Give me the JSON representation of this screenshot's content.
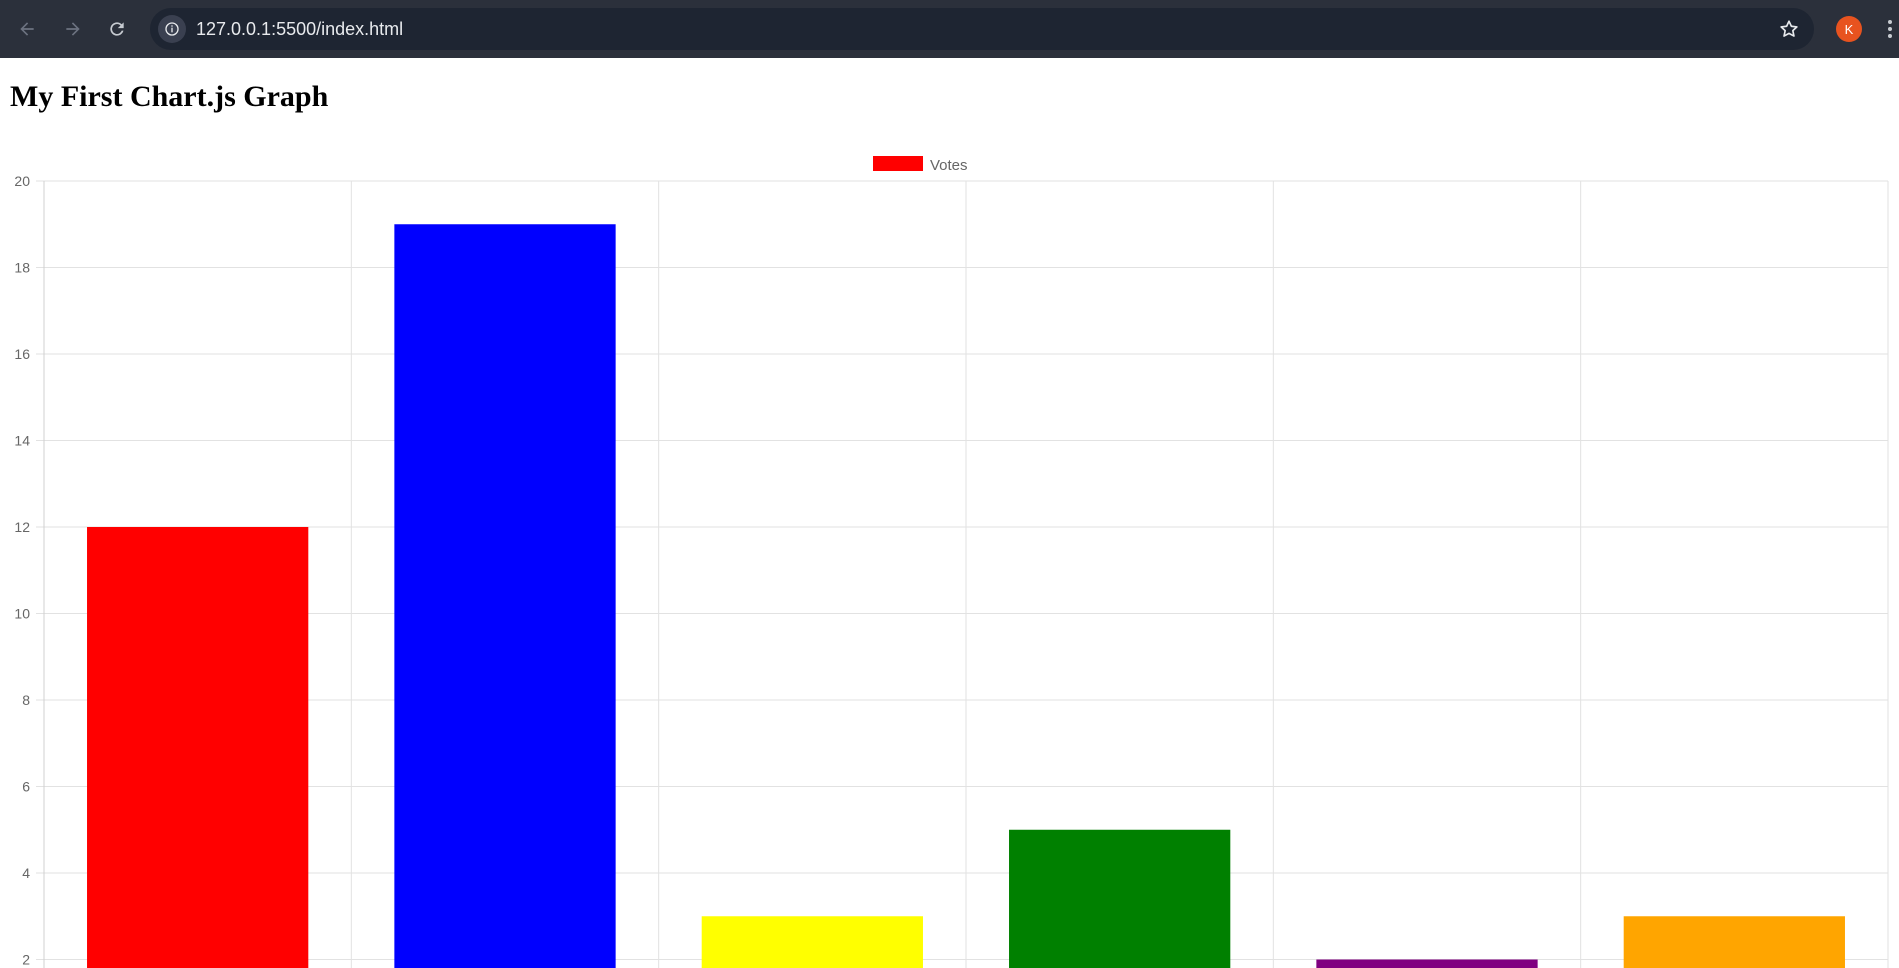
{
  "browser": {
    "url": "127.0.0.1:5500/index.html",
    "profile_initial": "K",
    "icons": {
      "back": "arrow-left-icon",
      "forward": "arrow-right-icon",
      "reload": "reload-icon",
      "site_info": "info-icon",
      "bookmark": "star-icon",
      "menu": "more-vert-icon"
    }
  },
  "page": {
    "title": "My First Chart.js Graph"
  },
  "chart_data": {
    "type": "bar",
    "categories": [
      "",
      "",
      "",
      "",
      "",
      ""
    ],
    "series": [
      {
        "name": "Votes",
        "values": [
          12,
          19,
          3,
          5,
          2,
          3
        ],
        "colors": [
          "#ff0000",
          "#0000ff",
          "#ffff00",
          "#008000",
          "#800080",
          "#ffa500"
        ]
      }
    ],
    "legend": {
      "position": "top",
      "swatch_color": "#ff0000"
    },
    "yticks": [
      2,
      4,
      6,
      8,
      10,
      12,
      14,
      16,
      18,
      20
    ],
    "ylim_top": 20,
    "grid": true
  }
}
